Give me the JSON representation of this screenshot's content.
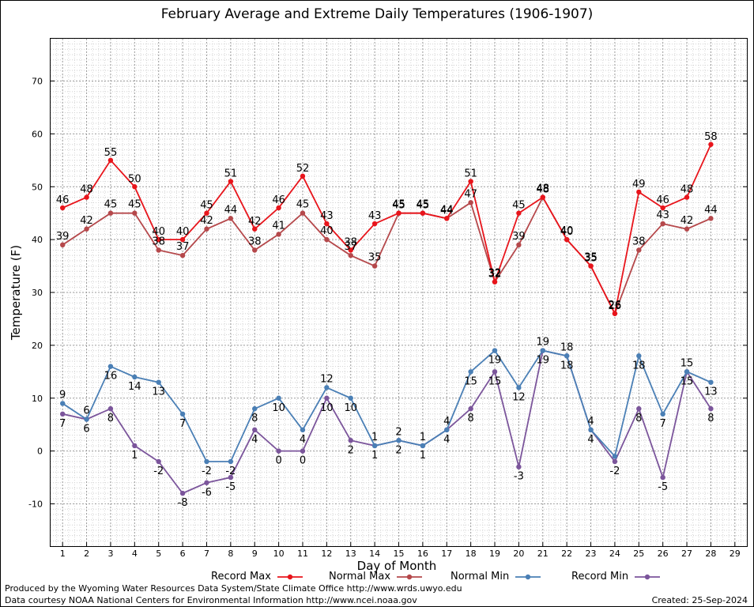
{
  "chart_data": {
    "type": "line",
    "title": "February Average and Extreme Daily Temperatures (1906-1907)",
    "xlabel": "Day of Month",
    "ylabel": "Temperature (F)",
    "xlim": [
      0.5,
      29.5
    ],
    "ylim": [
      -18,
      78
    ],
    "x_ticks": [
      1,
      2,
      3,
      4,
      5,
      6,
      7,
      8,
      9,
      10,
      11,
      12,
      13,
      14,
      15,
      16,
      17,
      18,
      19,
      20,
      21,
      22,
      23,
      24,
      25,
      26,
      27,
      28,
      29
    ],
    "y_ticks": [
      -10,
      0,
      10,
      20,
      30,
      40,
      50,
      60,
      70
    ],
    "grid": true,
    "legend": "bottom",
    "x": [
      1,
      2,
      3,
      4,
      5,
      6,
      7,
      8,
      9,
      10,
      11,
      12,
      13,
      14,
      15,
      16,
      17,
      18,
      19,
      20,
      21,
      22,
      23,
      24,
      25,
      26,
      27,
      28
    ],
    "series": [
      {
        "name": "Record Max",
        "color": "#e8141b",
        "values": [
          46,
          48,
          55,
          50,
          40,
          40,
          45,
          51,
          42,
          46,
          52,
          43,
          38,
          43,
          45,
          45,
          44,
          51,
          32,
          45,
          48,
          40,
          35,
          26,
          49,
          46,
          48,
          58
        ]
      },
      {
        "name": "Normal Max",
        "color": "#b5484b",
        "values": [
          39,
          42,
          45,
          45,
          38,
          37,
          42,
          44,
          38,
          41,
          45,
          40,
          37,
          35,
          45,
          45,
          44,
          47,
          32,
          39,
          48,
          40,
          35,
          26,
          38,
          43,
          42,
          44
        ]
      },
      {
        "name": "Normal Min",
        "color": "#4a7fb5",
        "values": [
          9,
          6,
          16,
          14,
          13,
          7,
          -2,
          -2,
          8,
          10,
          4,
          12,
          10,
          1,
          2,
          1,
          4,
          15,
          19,
          12,
          19,
          18,
          4,
          -1,
          18,
          7,
          15,
          13
        ]
      },
      {
        "name": "Record Min",
        "color": "#7b559b",
        "values": [
          7,
          6,
          8,
          1,
          -2,
          -8,
          -6,
          -5,
          4,
          0,
          0,
          10,
          2,
          1,
          2,
          1,
          4,
          8,
          15,
          -3,
          19,
          18,
          4,
          -2,
          8,
          -5,
          15,
          8
        ]
      }
    ],
    "data_labels": {
      "Record Max": [
        46,
        48,
        55,
        50,
        40,
        40,
        45,
        51,
        42,
        46,
        52,
        43,
        38,
        43,
        45,
        45,
        44,
        51,
        32,
        45,
        48,
        40,
        35,
        26,
        49,
        46,
        48,
        58
      ],
      "Normal Max": [
        39,
        42,
        45,
        45,
        38,
        37,
        42,
        44,
        38,
        41,
        45,
        40,
        37,
        35,
        45,
        45,
        44,
        47,
        32,
        39,
        48,
        40,
        35,
        26,
        38,
        43,
        42,
        44
      ],
      "Normal Min": [
        9,
        6,
        16,
        14,
        13,
        7,
        -2,
        -2,
        8,
        10,
        4,
        12,
        10,
        1,
        2,
        1,
        4,
        15,
        19,
        12,
        19,
        18,
        4,
        null,
        18,
        7,
        15,
        13
      ],
      "Record Min": [
        7,
        6,
        8,
        1,
        -2,
        -8,
        -6,
        -5,
        4,
        0,
        0,
        10,
        2,
        1,
        2,
        1,
        4,
        8,
        15,
        -3,
        19,
        18,
        4,
        -2,
        8,
        -5,
        15,
        8
      ]
    }
  },
  "footer": {
    "produced_by": "Produced by the Wyoming Water Resources Data System/State Climate Office http://www.wrds.uwyo.edu",
    "courtesy": "Data courtesy NOAA National Centers for Environmental Information http://www.ncei.noaa.gov",
    "created": "Created:  25-Sep-2024"
  }
}
